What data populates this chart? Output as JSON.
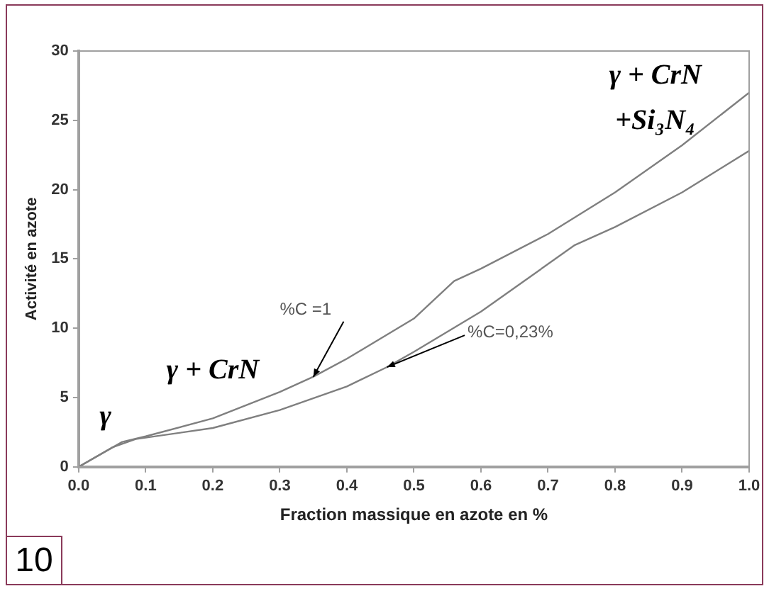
{
  "chart_data": {
    "type": "line",
    "xlabel": "Fraction massique en azote en %",
    "ylabel": "Activité en azote",
    "series": [
      {
        "name": "%C =1",
        "color": "#7f7f7f",
        "x": [
          0,
          0.065,
          0.1,
          0.2,
          0.3,
          0.35,
          0.4,
          0.5,
          0.56,
          0.6,
          0.7,
          0.8,
          0.9,
          1.0
        ],
        "values": [
          0,
          1.8,
          2.2,
          3.5,
          5.4,
          6.5,
          7.8,
          10.7,
          13.4,
          14.3,
          16.8,
          19.8,
          23.2,
          27
        ]
      },
      {
        "name": "%C=0,23%",
        "color": "#7f7f7f",
        "x": [
          0,
          0.05,
          0.085,
          0.2,
          0.3,
          0.4,
          0.46,
          0.5,
          0.6,
          0.74,
          0.8,
          0.9,
          1.0
        ],
        "values": [
          0,
          1.4,
          2.0,
          2.8,
          4.1,
          5.8,
          7.2,
          8.3,
          11.2,
          16.0,
          17.3,
          19.8,
          22.8
        ]
      }
    ],
    "xlim": [
      0,
      1
    ],
    "xticks": [
      {
        "value": 0,
        "label": "0.0"
      },
      0.1,
      0.2,
      0.3,
      0.4,
      0.5,
      0.6,
      0.7,
      0.8,
      0.9,
      {
        "value": 1,
        "label": "1.0"
      }
    ],
    "ylim": [
      0,
      30
    ],
    "yticks": [
      0,
      5,
      10,
      15,
      20,
      25,
      30
    ],
    "grid": false,
    "legend": false,
    "marker": "none",
    "line_style": "solid",
    "annotations": [
      "γ",
      "γ + CrN",
      "γ + CrN",
      "+Si₃N₄",
      "10"
    ]
  }
}
